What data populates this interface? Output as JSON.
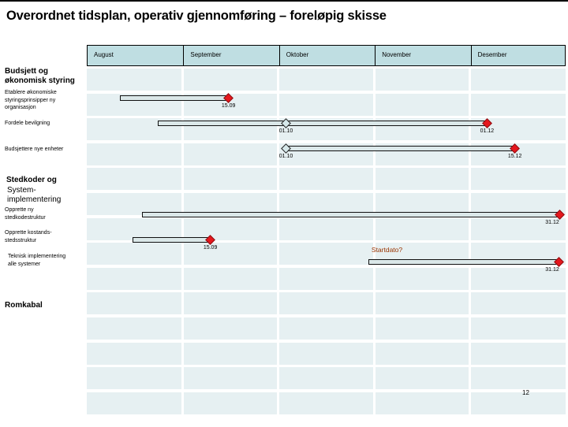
{
  "slide": {
    "title": "Overordnet tidsplan, operativ gjennomføring – foreløpig skisse",
    "page_number": "12"
  },
  "colors": {
    "header_fill": "#bfdee2",
    "band_fill": "#e6f0f2",
    "bar_fill": "#dbe8e9",
    "milestone_red": "#e5171d",
    "milestone_open_fill": "#d6e8ea",
    "annotation_color": "#993300"
  },
  "row_labels": {
    "budsjett_section": "Budsjett og\nøkonomisk styring",
    "etablere": "Etablere økonomiske\nstyringsprinsipper  ny\norganisasjon",
    "fordele": "Fordele bevilgning",
    "budsjettere": "Budsjettere nye enheter",
    "stedkoder_section": "Stedkoder og",
    "system_impl": "System-\nimplementering",
    "opprette_ny": "Opprette ny\nstedkodestruktur",
    "opprette_kostands": "Opprette kostands-\nstedsstruktur",
    "teknisk": "Teknisk implementering\nalle systemer",
    "romkabal_section": "Romkabal"
  },
  "chart_data": {
    "type": "gantt",
    "title": "Overordnet tidsplan, operativ gjennomføring – foreløpig skisse",
    "columns": [
      "August",
      "September",
      "Oktober",
      "November",
      "Desember"
    ],
    "axis": {
      "unit": "months",
      "range": [
        0,
        5
      ],
      "note": "0 = start of August, 5 = end of Desember"
    },
    "grid": {
      "band_rows": 14,
      "legend": "none"
    },
    "sections": [
      {
        "title": "Budsjett og økonomisk styring",
        "tasks": [
          "Etablere økonomiske styringsprinsipper  ny organisasjon",
          "Fordele bevilgning",
          "Budsjettere nye enheter"
        ]
      },
      {
        "title": "Stedkoder og System-implementering",
        "tasks": [
          "Opprette ny stedkodestruktur",
          "Opprette kostands-stedsstruktur",
          "Teknisk implementering alle systemer"
        ]
      },
      {
        "title": "Romkabal",
        "tasks": []
      }
    ],
    "tasks": [
      {
        "id": "etablere-styringsprinsipper",
        "label": "Etablere økonomiske styringsprinsipper  ny organisasjon",
        "bar": {
          "start_unit": 0.35,
          "end_unit": 1.48
        },
        "milestones": [
          {
            "unit": 1.48,
            "date": "15.09",
            "marker": "red-diamond"
          }
        ]
      },
      {
        "id": "fordele-bevilgning",
        "label": "Fordele bevilgning",
        "bar": {
          "start_unit": 0.74,
          "end_unit": 4.18
        },
        "milestones": [
          {
            "unit": 2.08,
            "date": "01.10",
            "marker": "open-diamond"
          },
          {
            "unit": 4.18,
            "date": "01.12",
            "marker": "red-diamond"
          }
        ]
      },
      {
        "id": "budsjettere-nye-enheter",
        "label": "Budsjettere nye enheter",
        "bar": {
          "start_unit": 2.08,
          "end_unit": 4.47
        },
        "milestones": [
          {
            "unit": 2.08,
            "date": "01.10",
            "marker": "open-diamond"
          },
          {
            "unit": 4.47,
            "date": "15.12",
            "marker": "red-diamond"
          }
        ]
      },
      {
        "id": "opprette-ny-stedkodestruktur",
        "label": "Opprette ny stedkodestruktur",
        "bar": {
          "start_unit": 0.58,
          "end_unit": 4.94
        },
        "milestones": [
          {
            "unit": 4.94,
            "date": "31.12",
            "marker": "red-diamond"
          }
        ]
      },
      {
        "id": "opprette-kostands-stedsstruktur",
        "label": "Opprette kostands-stedsstruktur",
        "bar": {
          "start_unit": 0.48,
          "end_unit": 1.29
        },
        "milestones": [
          {
            "unit": 1.29,
            "date": "15.09",
            "marker": "red-diamond"
          }
        ]
      },
      {
        "id": "teknisk-implementering",
        "label": "Teknisk implementering alle systemer",
        "bar": {
          "start_unit": 2.94,
          "end_unit": 4.93
        },
        "milestones": [
          {
            "unit": 4.93,
            "date": "31.12",
            "marker": "red-diamond"
          }
        ],
        "annotation": "Startdato?"
      }
    ]
  }
}
